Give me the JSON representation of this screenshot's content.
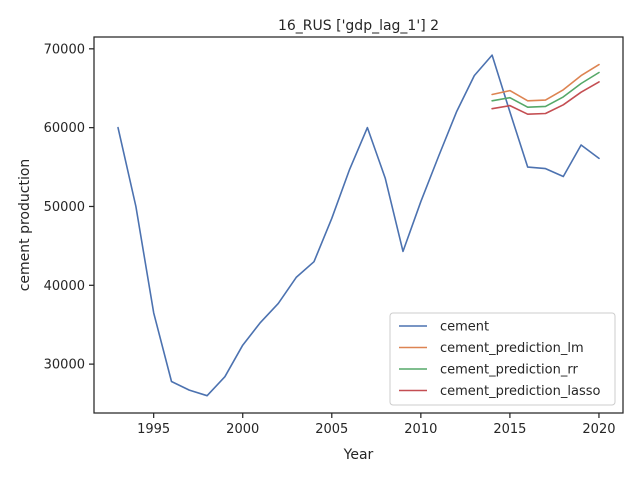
{
  "chart_data": {
    "type": "line",
    "title": "16_RUS ['gdp_lag_1'] 2",
    "xlabel": "Year",
    "ylabel": "cement production",
    "xlim": [
      1991.65,
      2021.35
    ],
    "ylim": [
      23800,
      71500
    ],
    "xticks": [
      1995,
      2000,
      2005,
      2010,
      2015,
      2020
    ],
    "yticks": [
      30000,
      40000,
      50000,
      60000,
      70000
    ],
    "grid": false,
    "legend_position": "lower-right",
    "series": [
      {
        "name": "cement",
        "color": "#4c72b0",
        "x": [
          1993,
          1994,
          1995,
          1996,
          1997,
          1998,
          1999,
          2000,
          2001,
          2002,
          2003,
          2004,
          2005,
          2006,
          2007,
          2008,
          2009,
          2010,
          2011,
          2012,
          2013,
          2014,
          2015,
          2016,
          2017,
          2018,
          2019,
          2020
        ],
        "y": [
          60000,
          50000,
          36500,
          27800,
          26700,
          26000,
          28400,
          32400,
          35300,
          37700,
          41000,
          43000,
          48500,
          54700,
          60000,
          53600,
          44300,
          50600,
          56400,
          62000,
          66600,
          69200,
          62000,
          55000,
          54800,
          53800,
          57800,
          56100
        ]
      },
      {
        "name": "cement_prediction_lm",
        "color": "#dd8452",
        "x": [
          2014,
          2015,
          2016,
          2017,
          2018,
          2019,
          2020
        ],
        "y": [
          64200,
          64700,
          63400,
          63500,
          64800,
          66600,
          68000
        ]
      },
      {
        "name": "cement_prediction_rr",
        "color": "#55a868",
        "x": [
          2014,
          2015,
          2016,
          2017,
          2018,
          2019,
          2020
        ],
        "y": [
          63400,
          63800,
          62600,
          62700,
          63900,
          65600,
          67000
        ]
      },
      {
        "name": "cement_prediction_lasso",
        "color": "#c44e52",
        "x": [
          2014,
          2015,
          2016,
          2017,
          2018,
          2019,
          2020
        ],
        "y": [
          62400,
          62800,
          61700,
          61800,
          62900,
          64500,
          65800
        ]
      }
    ]
  }
}
